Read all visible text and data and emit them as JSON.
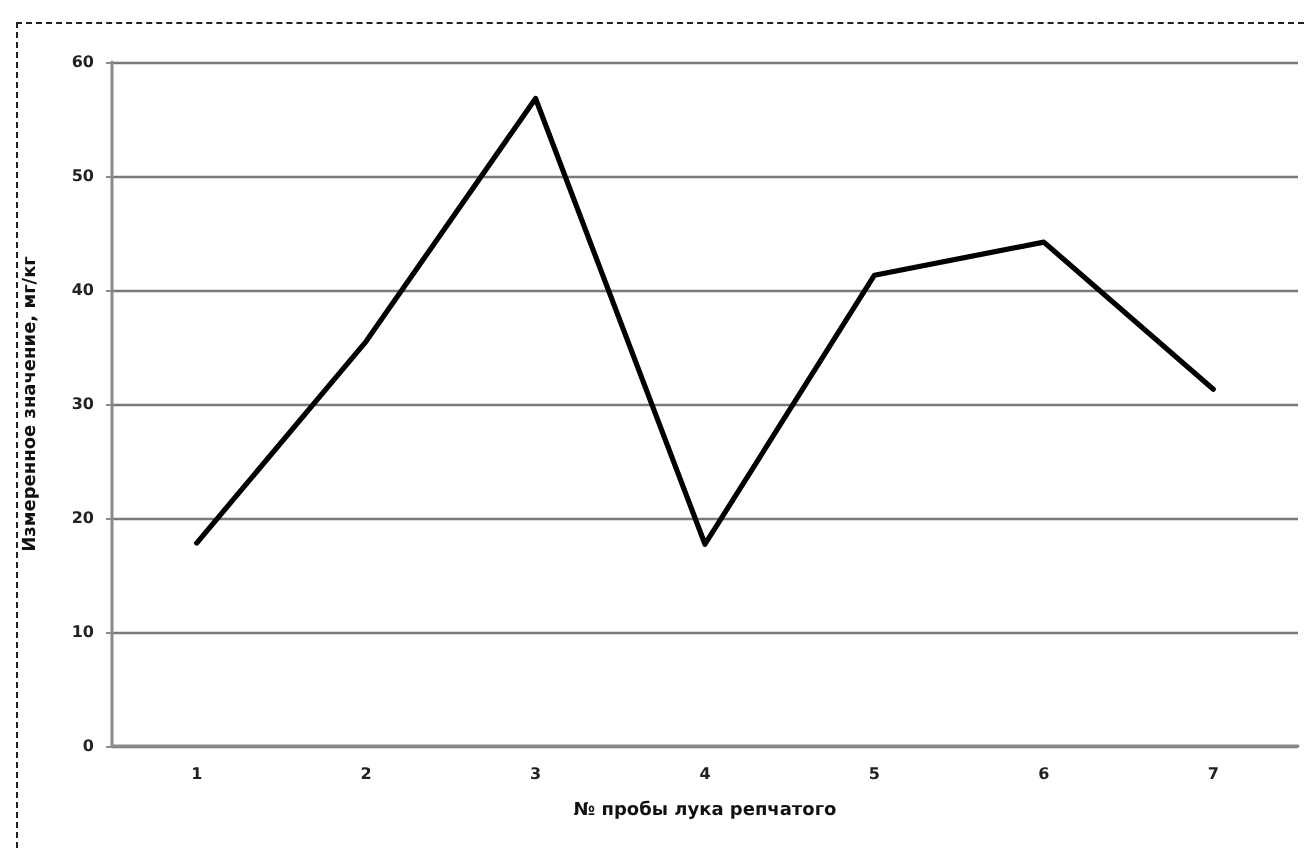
{
  "chart_data": {
    "type": "line",
    "xlabel": "№ пробы лука репчатого",
    "ylabel": "Измеренное значение, мг/кг",
    "categories": [
      "1",
      "2",
      "3",
      "4",
      "5",
      "6",
      "7"
    ],
    "series": [
      {
        "color": "#000000",
        "values": [
          17.8,
          35.5,
          56.8,
          17.7,
          41.3,
          44.2,
          31.3
        ]
      }
    ],
    "ylim": [
      0,
      60
    ],
    "yticks": [
      0,
      10,
      20,
      30,
      40,
      50,
      60
    ],
    "grid": "y",
    "marker": "none",
    "line_style": "solid"
  }
}
